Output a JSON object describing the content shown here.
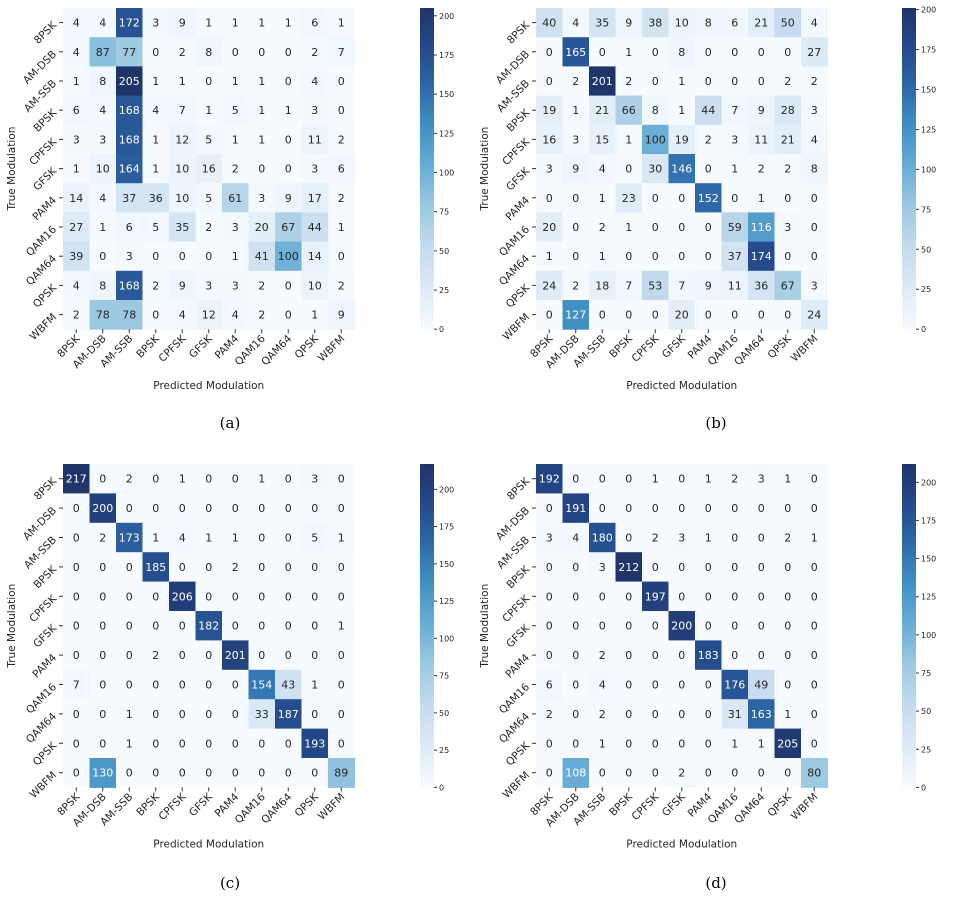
{
  "chart_data": [
    {
      "type": "heatmap",
      "caption": "(a)",
      "xlabel": "Predicted Modulation",
      "ylabel": "True Modulation",
      "categories": [
        "8PSK",
        "AM-DSB",
        "AM-SSB",
        "BPSK",
        "CPFSK",
        "GFSK",
        "PAM4",
        "QAM16",
        "QAM64",
        "QPSK",
        "WBFM"
      ],
      "matrix": [
        [
          4,
          4,
          172,
          3,
          9,
          1,
          1,
          1,
          1,
          6,
          1
        ],
        [
          4,
          87,
          77,
          0,
          2,
          8,
          0,
          0,
          0,
          2,
          7
        ],
        [
          1,
          8,
          205,
          1,
          1,
          0,
          1,
          1,
          0,
          4,
          0
        ],
        [
          6,
          4,
          168,
          4,
          7,
          1,
          5,
          1,
          1,
          3,
          0
        ],
        [
          3,
          3,
          168,
          1,
          12,
          5,
          1,
          1,
          0,
          11,
          2
        ],
        [
          1,
          10,
          164,
          1,
          10,
          16,
          2,
          0,
          0,
          3,
          6
        ],
        [
          14,
          4,
          37,
          36,
          10,
          5,
          61,
          3,
          9,
          17,
          2
        ],
        [
          27,
          1,
          6,
          5,
          35,
          2,
          3,
          20,
          67,
          44,
          1
        ],
        [
          39,
          0,
          3,
          0,
          0,
          0,
          1,
          41,
          100,
          14,
          0
        ],
        [
          4,
          8,
          168,
          2,
          9,
          3,
          3,
          2,
          0,
          10,
          2
        ],
        [
          2,
          78,
          78,
          0,
          4,
          12,
          4,
          2,
          0,
          1,
          9
        ]
      ],
      "colorbar": {
        "min": 0,
        "max": 205,
        "ticks": [
          0,
          25,
          50,
          75,
          100,
          125,
          150,
          175,
          200
        ]
      }
    },
    {
      "type": "heatmap",
      "caption": "(b)",
      "xlabel": "Predicted Modulation",
      "ylabel": "True Modulation",
      "categories": [
        "8PSK",
        "AM-DSB",
        "AM-SSB",
        "BPSK",
        "CPFSK",
        "GFSK",
        "PAM4",
        "QAM16",
        "QAM64",
        "QPSK",
        "WBFM"
      ],
      "matrix": [
        [
          40,
          4,
          35,
          9,
          38,
          10,
          8,
          6,
          21,
          50,
          4
        ],
        [
          0,
          165,
          0,
          1,
          0,
          8,
          0,
          0,
          0,
          0,
          27
        ],
        [
          0,
          2,
          201,
          2,
          0,
          1,
          0,
          0,
          0,
          2,
          2
        ],
        [
          19,
          1,
          21,
          66,
          8,
          1,
          44,
          7,
          9,
          28,
          3
        ],
        [
          16,
          3,
          15,
          1,
          100,
          19,
          2,
          3,
          11,
          21,
          4
        ],
        [
          3,
          9,
          4,
          0,
          30,
          146,
          0,
          1,
          2,
          2,
          8
        ],
        [
          0,
          0,
          1,
          23,
          0,
          0,
          152,
          0,
          1,
          0,
          0
        ],
        [
          20,
          0,
          2,
          1,
          0,
          0,
          0,
          59,
          116,
          3,
          0
        ],
        [
          1,
          0,
          1,
          0,
          0,
          0,
          0,
          37,
          174,
          0,
          0
        ],
        [
          24,
          2,
          18,
          7,
          53,
          7,
          9,
          11,
          36,
          67,
          3
        ],
        [
          0,
          127,
          0,
          0,
          0,
          20,
          0,
          0,
          0,
          0,
          24
        ]
      ],
      "colorbar": {
        "min": 0,
        "max": 201,
        "ticks": [
          0,
          25,
          50,
          75,
          100,
          125,
          150,
          175,
          200
        ]
      }
    },
    {
      "type": "heatmap",
      "caption": "(c)",
      "xlabel": "Predicted Modulation",
      "ylabel": "True Modulation",
      "categories": [
        "8PSK",
        "AM-DSB",
        "AM-SSB",
        "BPSK",
        "CPFSK",
        "GFSK",
        "PAM4",
        "QAM16",
        "QAM64",
        "QPSK",
        "WBFM"
      ],
      "matrix": [
        [
          217,
          0,
          2,
          0,
          1,
          0,
          0,
          1,
          0,
          3,
          0
        ],
        [
          0,
          200,
          0,
          0,
          0,
          0,
          0,
          0,
          0,
          0,
          0
        ],
        [
          0,
          2,
          173,
          1,
          4,
          1,
          1,
          0,
          0,
          5,
          1
        ],
        [
          0,
          0,
          0,
          185,
          0,
          0,
          2,
          0,
          0,
          0,
          0
        ],
        [
          0,
          0,
          0,
          0,
          206,
          0,
          0,
          0,
          0,
          0,
          0
        ],
        [
          0,
          0,
          0,
          0,
          0,
          182,
          0,
          0,
          0,
          0,
          1
        ],
        [
          0,
          0,
          0,
          2,
          0,
          0,
          201,
          0,
          0,
          0,
          0
        ],
        [
          7,
          0,
          0,
          0,
          0,
          0,
          0,
          154,
          43,
          1,
          0
        ],
        [
          0,
          0,
          1,
          0,
          0,
          0,
          0,
          33,
          187,
          0,
          0
        ],
        [
          0,
          0,
          1,
          0,
          0,
          0,
          0,
          0,
          0,
          193,
          0
        ],
        [
          0,
          130,
          0,
          0,
          0,
          0,
          0,
          0,
          0,
          0,
          89
        ]
      ],
      "colorbar": {
        "min": 0,
        "max": 217,
        "ticks": [
          0,
          25,
          50,
          75,
          100,
          125,
          150,
          175,
          200
        ]
      }
    },
    {
      "type": "heatmap",
      "caption": "(d)",
      "xlabel": "Predicted Modulation",
      "ylabel": "True Modulation",
      "categories": [
        "8PSK",
        "AM-DSB",
        "AM-SSB",
        "BPSK",
        "CPFSK",
        "GFSK",
        "PAM4",
        "QAM16",
        "QAM64",
        "QPSK",
        "WBFM"
      ],
      "matrix": [
        [
          192,
          0,
          0,
          0,
          1,
          0,
          1,
          2,
          3,
          1,
          0
        ],
        [
          0,
          191,
          0,
          0,
          0,
          0,
          0,
          0,
          0,
          0,
          0
        ],
        [
          3,
          4,
          180,
          0,
          2,
          3,
          1,
          0,
          0,
          2,
          1
        ],
        [
          0,
          0,
          3,
          212,
          0,
          0,
          0,
          0,
          0,
          0,
          0
        ],
        [
          0,
          0,
          0,
          0,
          197,
          0,
          0,
          0,
          0,
          0,
          0
        ],
        [
          0,
          0,
          0,
          0,
          0,
          200,
          0,
          0,
          0,
          0,
          0
        ],
        [
          0,
          0,
          2,
          0,
          0,
          0,
          183,
          0,
          0,
          0,
          0
        ],
        [
          6,
          0,
          4,
          0,
          0,
          0,
          0,
          176,
          49,
          0,
          0
        ],
        [
          2,
          0,
          2,
          0,
          0,
          0,
          0,
          31,
          163,
          1,
          0
        ],
        [
          0,
          0,
          1,
          0,
          0,
          0,
          0,
          1,
          1,
          205,
          0
        ],
        [
          0,
          108,
          0,
          0,
          0,
          2,
          0,
          0,
          0,
          0,
          80
        ]
      ],
      "colorbar": {
        "min": 0,
        "max": 212,
        "ticks": [
          0,
          25,
          50,
          75,
          100,
          125,
          150,
          175,
          200
        ]
      }
    }
  ],
  "colors": {
    "colormap": [
      "#f7fbff",
      "#deebf7",
      "#c6dbef",
      "#9ecae1",
      "#6baed6",
      "#4292c6",
      "#2e6aa8",
      "#24498a",
      "#1f356a"
    ]
  }
}
